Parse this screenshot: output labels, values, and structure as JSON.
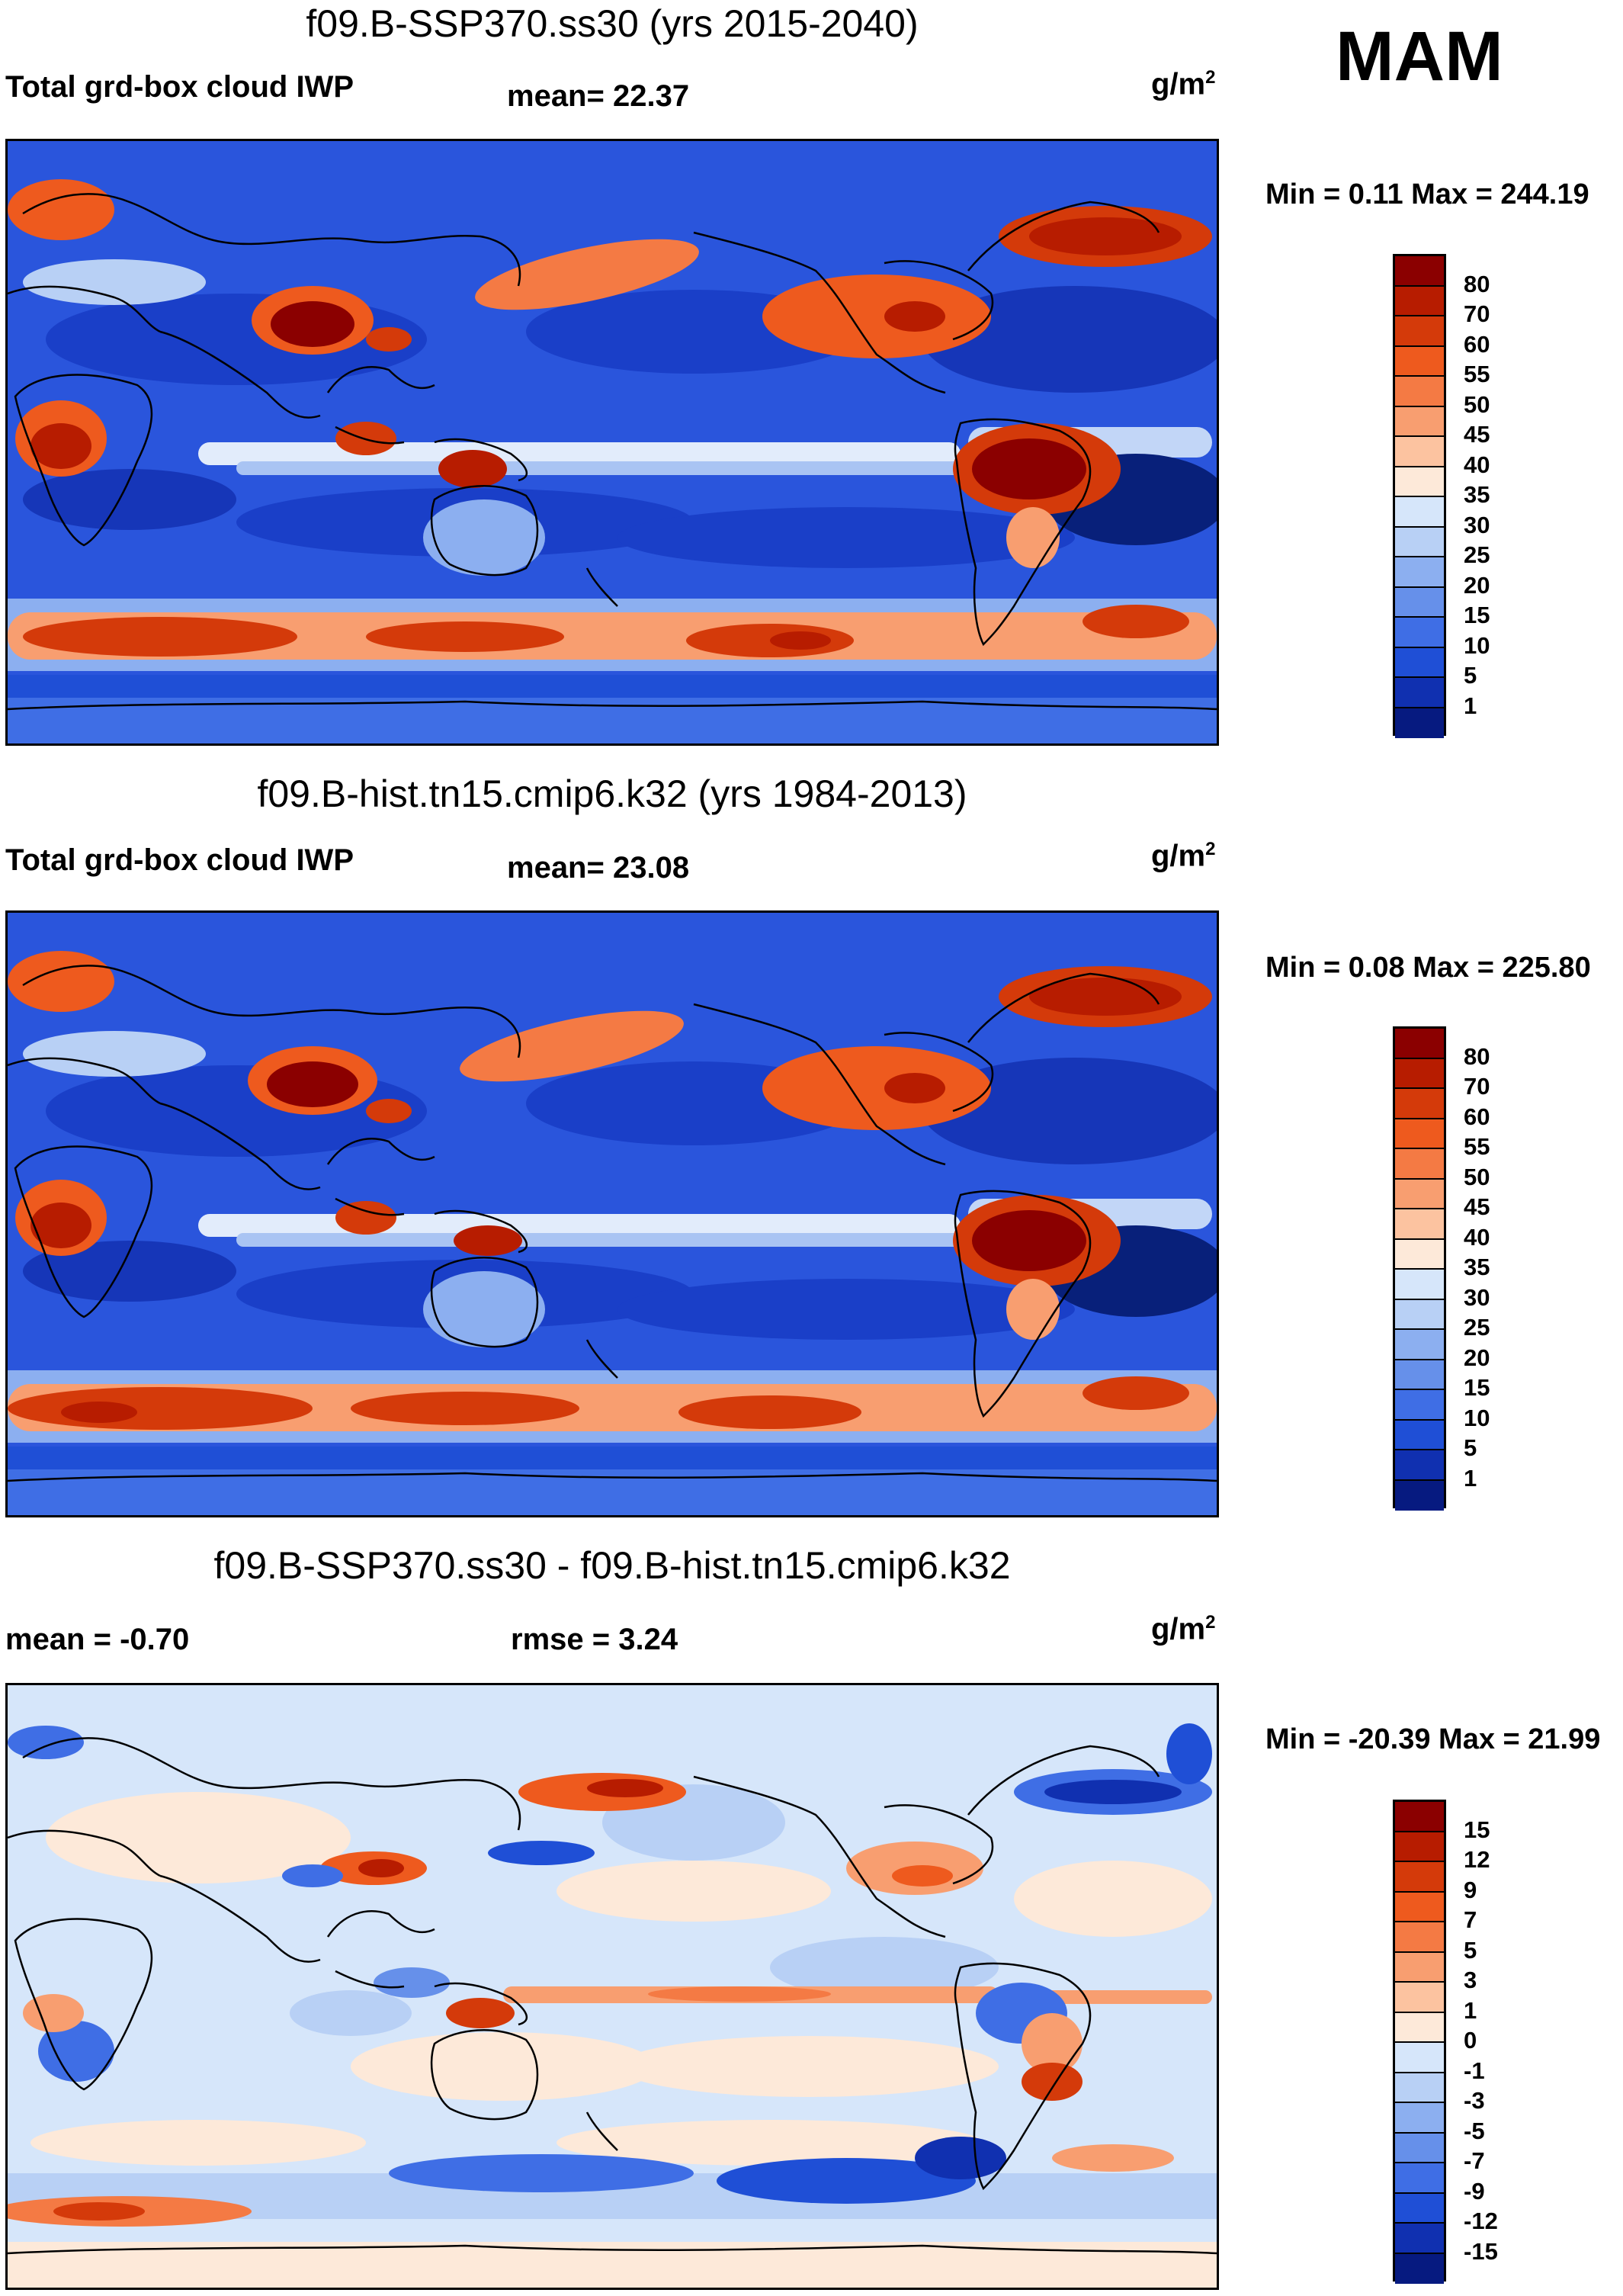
{
  "season": "MAM",
  "units": "g/m",
  "units_exp": "2",
  "panels": [
    {
      "title": "f09.B-SSP370.ss30 (yrs 2015-2040)",
      "left_label": "Total grd-box cloud IWP",
      "center_label": "mean=  22.37",
      "minmax": "Min =   0.11 Max = 244.19"
    },
    {
      "title": "f09.B-hist.tn15.cmip6.k32 (yrs 1984-2013)",
      "left_label": "Total grd-box cloud IWP",
      "center_label": "mean=  23.08",
      "minmax": "Min =   0.08 Max = 225.80"
    },
    {
      "title": "f09.B-SSP370.ss30 - f09.B-hist.tn15.cmip6.k32",
      "left_label": "mean =  -0.70",
      "center_label": "rmse =    3.24",
      "minmax": "Min = -20.39 Max =  21.99"
    }
  ],
  "colorbar_abs": {
    "labels": [
      "80",
      "70",
      "60",
      "55",
      "50",
      "45",
      "40",
      "35",
      "30",
      "25",
      "20",
      "15",
      "10",
      "5",
      "1"
    ],
    "colors": [
      "#8b0000",
      "#b71c00",
      "#d43a0a",
      "#ee5a1e",
      "#f47a44",
      "#f89e70",
      "#fcc3a0",
      "#fde9d9",
      "#d6e6fa",
      "#b8d0f5",
      "#8caff0",
      "#6690ea",
      "#3f6ee5",
      "#1f4fd6",
      "#1030b0",
      "#061a80"
    ]
  },
  "colorbar_diff": {
    "labels": [
      "15",
      "12",
      "9",
      "7",
      "5",
      "3",
      "1",
      "0",
      "-1",
      "-3",
      "-5",
      "-7",
      "-9",
      "-12",
      "-15"
    ],
    "colors": [
      "#8b0000",
      "#b71c00",
      "#d43a0a",
      "#ee5a1e",
      "#f47a44",
      "#f89e70",
      "#fcc3a0",
      "#fde9d9",
      "#d6e6fa",
      "#b8d0f5",
      "#8caff0",
      "#6690ea",
      "#3f6ee5",
      "#1f4fd6",
      "#1030b0",
      "#061a80"
    ]
  }
}
